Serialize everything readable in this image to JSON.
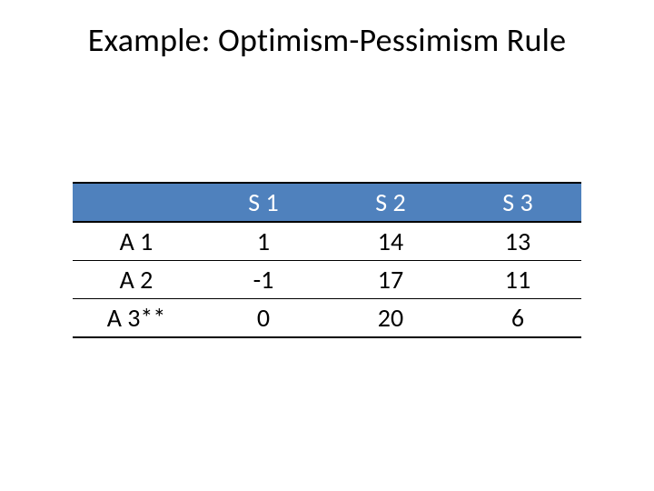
{
  "title": "Example: Optimism-Pessimism Rule",
  "table": {
    "type": "table",
    "header_bg": "#4f81bd",
    "header_fg": "#ffffff",
    "border_color": "#000000",
    "cell_fontsize": 28,
    "title_fontsize": 36,
    "columns": [
      "",
      "S 1",
      "S 2",
      "S 3"
    ],
    "rows": [
      {
        "label": "A 1",
        "values": [
          "1",
          "14",
          "13"
        ]
      },
      {
        "label": "A 2",
        "values": [
          "-1",
          "17",
          "11"
        ]
      },
      {
        "label": "A 3**",
        "values": [
          "0",
          "20",
          "6"
        ]
      }
    ],
    "col_widths_pct": [
      25,
      25,
      25,
      25
    ]
  }
}
